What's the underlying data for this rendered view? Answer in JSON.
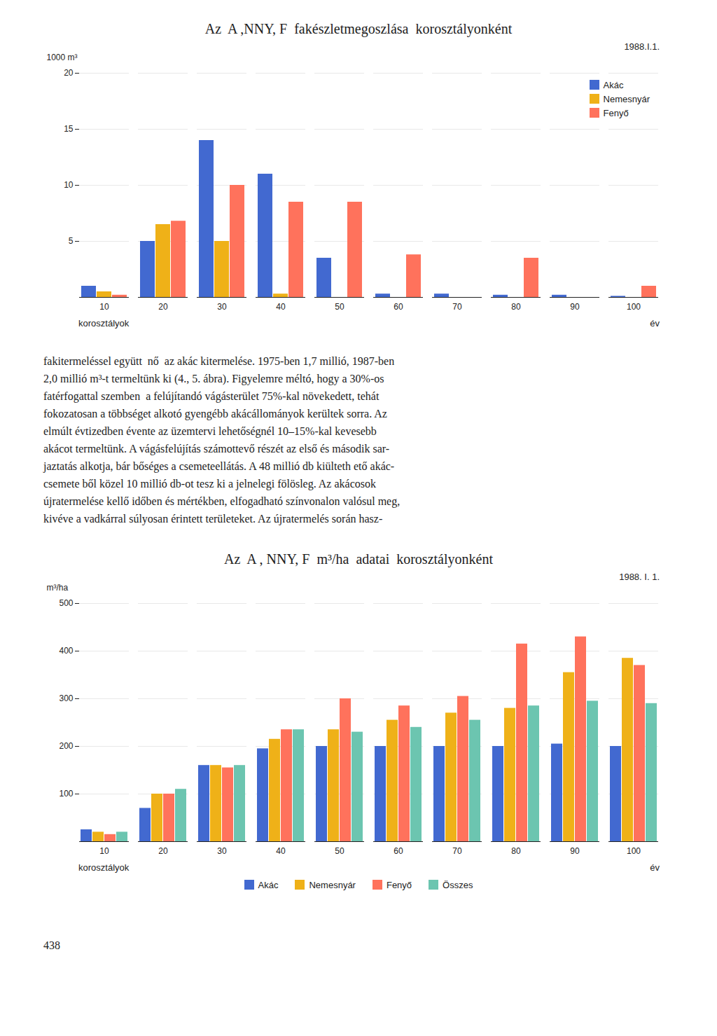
{
  "chart_data": [
    {
      "type": "bar",
      "title": "Az  A ,NNY, F  fakészletmegoszlása  korosztályonként",
      "ylabel": "1000 m³",
      "xlabel": "korosztályok",
      "annotations": [
        "1988.I.1.",
        "év"
      ],
      "categories": [
        10,
        20,
        30,
        40,
        50,
        60,
        70,
        80,
        90,
        100
      ],
      "series": [
        {
          "name": "Akác",
          "values": [
            1.0,
            5.0,
            14.0,
            11.0,
            3.5,
            0.3,
            0.3,
            0.2,
            0.2,
            0.1
          ]
        },
        {
          "name": "Nemesnyár",
          "values": [
            0.5,
            6.5,
            5.0,
            0.3,
            0.0,
            0.0,
            0.0,
            0.0,
            0.0,
            0.0
          ]
        },
        {
          "name": "Fenyő",
          "values": [
            0.2,
            6.8,
            10.0,
            8.5,
            8.5,
            3.8,
            0.0,
            3.5,
            0.0,
            1.0
          ]
        }
      ],
      "ylim": [
        0,
        20
      ],
      "yticks": [
        5,
        10,
        15,
        20
      ],
      "grid": true,
      "legend": "upper right"
    },
    {
      "type": "bar",
      "title": "Az  A , NNY, F  m³/ha  adatai  korosztályonként",
      "ylabel": "m³/ha",
      "xlabel": "korosztályok",
      "annotations": [
        "1988. I. 1.",
        "év"
      ],
      "categories": [
        10,
        20,
        30,
        40,
        50,
        60,
        70,
        80,
        90,
        100
      ],
      "series": [
        {
          "name": "Akác",
          "values": [
            25,
            70,
            160,
            195,
            200,
            200,
            200,
            200,
            205,
            200
          ]
        },
        {
          "name": "Nemesnyár",
          "values": [
            20,
            100,
            160,
            215,
            235,
            255,
            270,
            280,
            355,
            385
          ]
        },
        {
          "name": "Fenyő",
          "values": [
            15,
            100,
            155,
            235,
            300,
            285,
            305,
            415,
            430,
            370
          ]
        },
        {
          "name": "Összes",
          "values": [
            20,
            110,
            160,
            235,
            230,
            240,
            255,
            285,
            295,
            290
          ]
        }
      ],
      "ylim": [
        0,
        500
      ],
      "yticks": [
        100,
        200,
        300,
        400,
        500
      ],
      "grid": true,
      "legend": "bottom"
    }
  ],
  "text_lines": [
    "fakitermeléssel együtt  nő  az akác kitermelése. 1975-ben 1,7 millió, 1987-ben",
    "2,0 millió m³-t termeltünk ki (4., 5. ábra). Figyelemre méltó, hogy a 30%-os",
    "fatérfogattal szemben  a felújítandó vágásterület 75%-kal növekedett, tehát",
    "fokozatosan a többséget alkotó gyengébb akácállományok kerültek sorra. Az",
    "elmúlt évtizedben évente az üzemtervi lehetőségnél 10–15%-kal kevesebb",
    "akácot termeltünk. A vágásfelújítás számottevő részét az első és második sar-",
    "jaztatás alkotja, bár bőséges a csemeteellátás. A 48 millió db kiülteth ető akác-",
    "csemete ből közel 10 millió db-ot tesz ki a jelnelegi fölösleg. Az akácosok",
    "újratermelése kellő időben és mértékben, elfogadható színvonalon valósul meg,",
    "kivéve a vadkárral súlyosan érintett területeket. Az újratermelés során hasz-"
  ],
  "page_number": "438"
}
